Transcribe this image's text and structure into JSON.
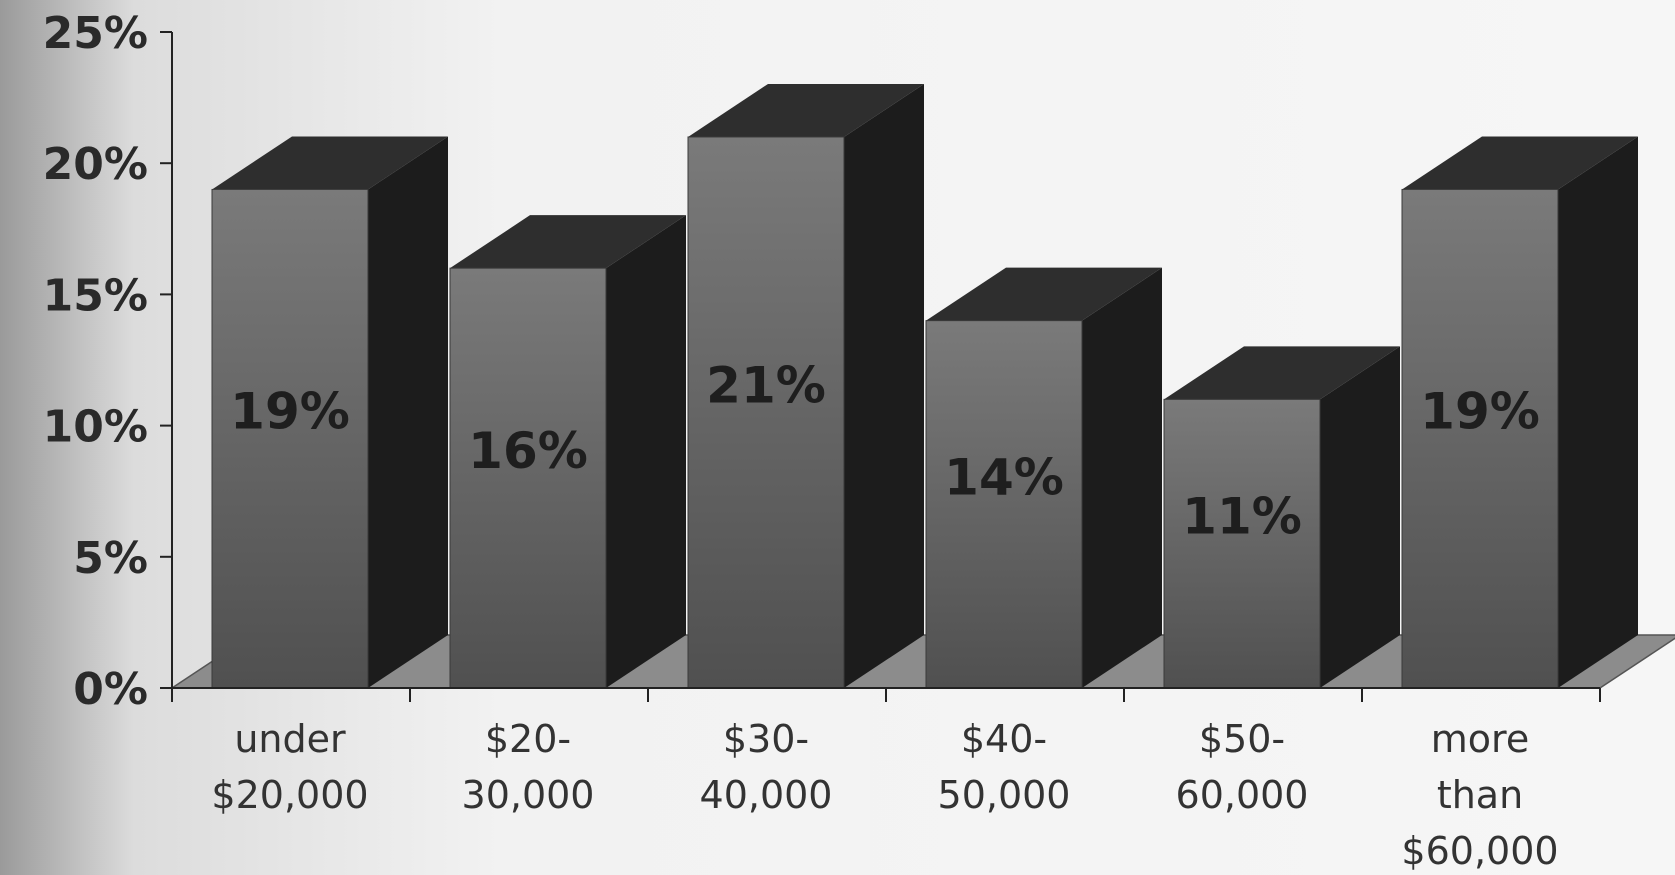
{
  "chart_data": {
    "type": "bar",
    "categories": [
      [
        "under",
        "$20,000"
      ],
      [
        "$20-",
        "30,000"
      ],
      [
        "$30-",
        "40,000"
      ],
      [
        "$40-",
        "50,000"
      ],
      [
        "$50-",
        "60,000"
      ],
      [
        "more",
        "than",
        "$60,000"
      ]
    ],
    "values": [
      19,
      16,
      21,
      14,
      11,
      19
    ],
    "data_labels": [
      "19%",
      "16%",
      "21%",
      "14%",
      "11%",
      "19%"
    ],
    "y_ticks": [
      "0%",
      "5%",
      "10%",
      "15%",
      "20%",
      "25%"
    ],
    "ylim": [
      0,
      25
    ],
    "grid": false,
    "style": "3d-column",
    "colors": {
      "front": "#6a6a6a",
      "side": "#1c1c1c",
      "top": "#2e2e2e",
      "floor": "#8c8c8c"
    }
  }
}
